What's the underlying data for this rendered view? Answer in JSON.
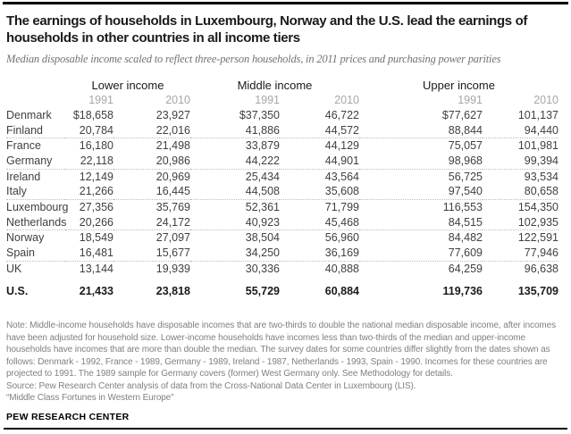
{
  "header": {
    "title": "The earnings of households in Luxembourg, Norway and the U.S. lead the earnings of households in other countries in all income tiers",
    "subtitle": "Median disposable income scaled to reflect three-person households, in 2011 prices and purchasing power parities"
  },
  "table": {
    "groups": [
      {
        "label": "Lower income"
      },
      {
        "label": "Middle income"
      },
      {
        "label": "Upper income"
      }
    ],
    "year_labels": [
      "1991",
      "2010",
      "1991",
      "2010",
      "1991",
      "2010"
    ],
    "rows": [
      {
        "country": "Denmark",
        "values": [
          "$18,658",
          "23,927",
          "$37,350",
          "46,722",
          "$77,627",
          "101,137"
        ],
        "separator": false,
        "total": false
      },
      {
        "country": "Finland",
        "values": [
          "20,784",
          "22,016",
          "41,886",
          "44,572",
          "88,844",
          "94,440"
        ],
        "separator": true,
        "total": false
      },
      {
        "country": "France",
        "values": [
          "16,180",
          "21,498",
          "33,879",
          "44,129",
          "75,057",
          "101,981"
        ],
        "separator": false,
        "total": false
      },
      {
        "country": "Germany",
        "values": [
          "22,118",
          "20,986",
          "44,222",
          "44,901",
          "98,968",
          "99,394"
        ],
        "separator": true,
        "total": false
      },
      {
        "country": "Ireland",
        "values": [
          "12,149",
          "20,969",
          "25,434",
          "43,564",
          "56,725",
          "93,534"
        ],
        "separator": false,
        "total": false
      },
      {
        "country": "Italy",
        "values": [
          "21,266",
          "16,445",
          "44,508",
          "35,608",
          "97,540",
          "80,658"
        ],
        "separator": true,
        "total": false
      },
      {
        "country": "Luxembourg",
        "values": [
          "27,356",
          "35,769",
          "52,361",
          "71,799",
          "116,553",
          "154,350"
        ],
        "separator": false,
        "total": false
      },
      {
        "country": "Netherlands",
        "values": [
          "20,266",
          "24,172",
          "40,923",
          "45,468",
          "84,515",
          "102,935"
        ],
        "separator": true,
        "total": false
      },
      {
        "country": "Norway",
        "values": [
          "18,549",
          "27,097",
          "38,504",
          "56,960",
          "84,482",
          "122,591"
        ],
        "separator": false,
        "total": false
      },
      {
        "country": "Spain",
        "values": [
          "16,481",
          "15,677",
          "34,250",
          "36,169",
          "77,609",
          "77,946"
        ],
        "separator": true,
        "total": false
      },
      {
        "country": "UK",
        "values": [
          "13,144",
          "19,939",
          "30,336",
          "40,888",
          "64,259",
          "96,638"
        ],
        "separator": false,
        "total": false
      },
      {
        "country": "U.S.",
        "values": [
          "21,433",
          "23,818",
          "55,729",
          "60,884",
          "119,736",
          "135,709"
        ],
        "separator": false,
        "total": true
      }
    ]
  },
  "chart_data": {
    "type": "table",
    "title": "The earnings of households in Luxembourg, Norway and the U.S. lead the earnings of households in other countries in all income tiers",
    "subtitle": "Median disposable income scaled to reflect three-person households, in 2011 prices and purchasing power parities",
    "column_groups": [
      "Lower income",
      "Middle income",
      "Upper income"
    ],
    "years": [
      1991,
      2010
    ],
    "unit": "USD, 2011 prices and purchasing power parities",
    "rows": [
      {
        "country": "Denmark",
        "lower_1991": 18658,
        "lower_2010": 23927,
        "middle_1991": 37350,
        "middle_2010": 46722,
        "upper_1991": 77627,
        "upper_2010": 101137
      },
      {
        "country": "Finland",
        "lower_1991": 20784,
        "lower_2010": 22016,
        "middle_1991": 41886,
        "middle_2010": 44572,
        "upper_1991": 88844,
        "upper_2010": 94440
      },
      {
        "country": "France",
        "lower_1991": 16180,
        "lower_2010": 21498,
        "middle_1991": 33879,
        "middle_2010": 44129,
        "upper_1991": 75057,
        "upper_2010": 101981
      },
      {
        "country": "Germany",
        "lower_1991": 22118,
        "lower_2010": 20986,
        "middle_1991": 44222,
        "middle_2010": 44901,
        "upper_1991": 98968,
        "upper_2010": 99394
      },
      {
        "country": "Ireland",
        "lower_1991": 12149,
        "lower_2010": 20969,
        "middle_1991": 25434,
        "middle_2010": 43564,
        "upper_1991": 56725,
        "upper_2010": 93534
      },
      {
        "country": "Italy",
        "lower_1991": 21266,
        "lower_2010": 16445,
        "middle_1991": 44508,
        "middle_2010": 35608,
        "upper_1991": 97540,
        "upper_2010": 80658
      },
      {
        "country": "Luxembourg",
        "lower_1991": 27356,
        "lower_2010": 35769,
        "middle_1991": 52361,
        "middle_2010": 71799,
        "upper_1991": 116553,
        "upper_2010": 154350
      },
      {
        "country": "Netherlands",
        "lower_1991": 20266,
        "lower_2010": 24172,
        "middle_1991": 40923,
        "middle_2010": 45468,
        "upper_1991": 84515,
        "upper_2010": 102935
      },
      {
        "country": "Norway",
        "lower_1991": 18549,
        "lower_2010": 27097,
        "middle_1991": 38504,
        "middle_2010": 56960,
        "upper_1991": 84482,
        "upper_2010": 122591
      },
      {
        "country": "Spain",
        "lower_1991": 16481,
        "lower_2010": 15677,
        "middle_1991": 34250,
        "middle_2010": 36169,
        "upper_1991": 77609,
        "upper_2010": 77946
      },
      {
        "country": "UK",
        "lower_1991": 13144,
        "lower_2010": 19939,
        "middle_1991": 30336,
        "middle_2010": 40888,
        "upper_1991": 64259,
        "upper_2010": 96638
      },
      {
        "country": "U.S.",
        "lower_1991": 21433,
        "lower_2010": 23818,
        "middle_1991": 55729,
        "middle_2010": 60884,
        "upper_1991": 119736,
        "upper_2010": 135709
      }
    ]
  },
  "footer": {
    "note": "Note: Middle-income households have disposable incomes that are two-thirds to double the national median disposable income, after incomes have been adjusted for household size. Lower-income households have incomes less than two-thirds of the median and upper-income households have incomes that are more than double the median. The survey dates for some countries differ slightly from the dates shown as follows: Denmark - 1992, France - 1989, Germany - 1989, Ireland - 1987, Netherlands - 1993, Spain - 1990. Incomes for these countries are projected to 1991. The 1989 sample for Germany covers (former) West Germany only. See Methodology for details.",
    "source": "Source: Pew Research Center analysis of data from the Cross-National Data Center in Luxembourg (LIS).",
    "report_title": "“Middle Class Fortunes in Western Europe”",
    "brand": "PEW RESEARCH CENTER"
  },
  "colors": {
    "text_dark": "#1a1a1a",
    "text_table": "#404040",
    "text_gray": "#808080",
    "year_gray": "#a6a6a6",
    "rule_black": "#000000",
    "dotted_separator": "#bdbdbd",
    "background": "#ffffff"
  }
}
